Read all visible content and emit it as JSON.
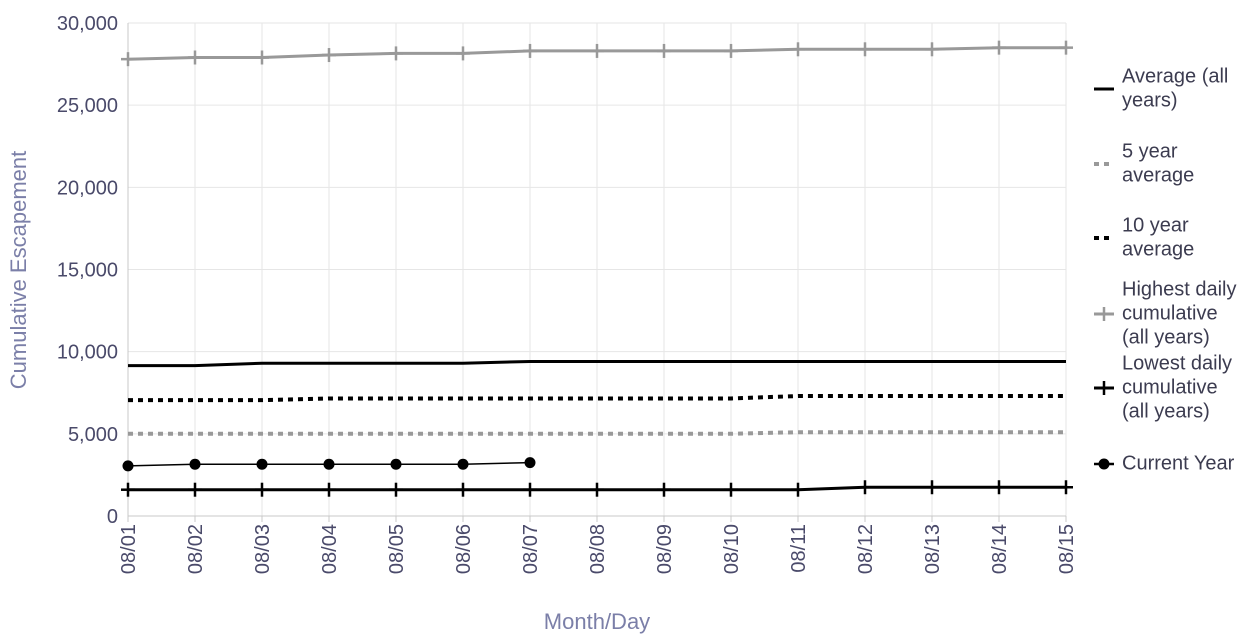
{
  "chart_data": {
    "type": "line",
    "title": "",
    "xlabel": "Month/Day",
    "ylabel": "Cumulative Escapement",
    "categories": [
      "08/01",
      "08/02",
      "08/03",
      "08/04",
      "08/05",
      "08/06",
      "08/07",
      "08/08",
      "08/09",
      "08/10",
      "08/11",
      "08/12",
      "08/13",
      "08/14",
      "08/15"
    ],
    "ylim": [
      0,
      30000
    ],
    "yticks": [
      0,
      5000,
      10000,
      15000,
      20000,
      25000,
      30000
    ],
    "ytick_labels": [
      "0",
      "5,000",
      "10,000",
      "15,000",
      "20,000",
      "25,000",
      "30,000"
    ],
    "grid": true,
    "legend_position": "right",
    "series": [
      {
        "name": "Average (all years)",
        "legend_lines": [
          "Average (all",
          "years)"
        ],
        "color": "#000000",
        "style": "solid",
        "marker": "none",
        "values": [
          9150,
          9150,
          9300,
          9300,
          9300,
          9300,
          9400,
          9400,
          9400,
          9400,
          9400,
          9400,
          9400,
          9400,
          9400
        ]
      },
      {
        "name": "5 year average",
        "legend_lines": [
          "5 year",
          "average"
        ],
        "color": "#999999",
        "style": "dotted",
        "marker": "none",
        "values": [
          5000,
          5000,
          5000,
          5000,
          5000,
          5000,
          5000,
          5000,
          5000,
          5000,
          5100,
          5100,
          5100,
          5100,
          5100
        ]
      },
      {
        "name": "10 year average",
        "legend_lines": [
          "10 year",
          "average"
        ],
        "color": "#000000",
        "style": "dotted",
        "marker": "none",
        "values": [
          7050,
          7050,
          7050,
          7150,
          7150,
          7150,
          7150,
          7150,
          7150,
          7150,
          7300,
          7300,
          7300,
          7300,
          7300
        ]
      },
      {
        "name": "Highest daily cumulative (all years)",
        "legend_lines": [
          "Highest daily",
          "cumulative",
          "(all years)"
        ],
        "color": "#999999",
        "style": "solid",
        "marker": "plus",
        "values": [
          27800,
          27900,
          27900,
          28050,
          28150,
          28150,
          28300,
          28300,
          28300,
          28300,
          28400,
          28400,
          28400,
          28500,
          28500
        ]
      },
      {
        "name": "Lowest daily cumulative (all years)",
        "legend_lines": [
          "Lowest daily",
          "cumulative",
          "(all years)"
        ],
        "color": "#000000",
        "style": "solid",
        "marker": "plus",
        "values": [
          1600,
          1600,
          1600,
          1600,
          1600,
          1600,
          1600,
          1600,
          1600,
          1600,
          1600,
          1750,
          1750,
          1750,
          1750
        ]
      },
      {
        "name": "Current Year",
        "legend_lines": [
          "Current Year"
        ],
        "color": "#000000",
        "style": "thin",
        "marker": "circle",
        "values": [
          3050,
          3150,
          3150,
          3150,
          3150,
          3150,
          3250,
          null,
          null,
          null,
          null,
          null,
          null,
          null,
          null
        ]
      }
    ]
  }
}
